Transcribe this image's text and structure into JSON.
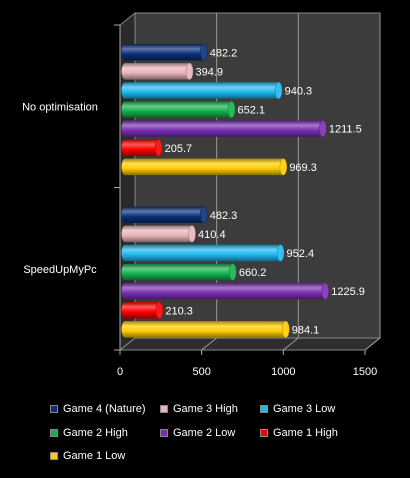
{
  "chart_data": {
    "type": "bar",
    "orientation": "horizontal",
    "categories": [
      "No optimisation",
      "SpeedUpMyPc"
    ],
    "series": [
      {
        "name": "Game 4 (Nature)",
        "color": "#0b2f7a",
        "values": [
          482.2,
          482.3
        ],
        "labels": [
          "482.2",
          "482.3"
        ]
      },
      {
        "name": "Game 3 High",
        "color": "#e8b4b8",
        "values": [
          394.9,
          410.4
        ],
        "labels": [
          "394.9",
          "410.4"
        ]
      },
      {
        "name": "Game 3 Low",
        "color": "#1fb8ee",
        "values": [
          940.3,
          952.4
        ],
        "labels": [
          "940.3",
          "952.4"
        ]
      },
      {
        "name": "Game 2 High",
        "color": "#14b04c",
        "values": [
          652.1,
          660.2
        ],
        "labels": [
          "652.1",
          "660.2"
        ]
      },
      {
        "name": "Game 2 Low",
        "color": "#7a2fb2",
        "values": [
          1211.5,
          1225.9
        ],
        "labels": [
          "1211.5",
          "1225.9"
        ]
      },
      {
        "name": "Game 1 High",
        "color": "#ff0000",
        "values": [
          205.7,
          210.3
        ],
        "labels": [
          "205.7",
          "210.3"
        ]
      },
      {
        "name": "Game 1 Low",
        "color": "#ffcc00",
        "values": [
          969.3,
          984.1
        ],
        "labels": [
          "969.3",
          "984.1"
        ]
      }
    ],
    "xlim": [
      0,
      1500
    ],
    "xticks": [
      "0",
      "500",
      "1000",
      "1500"
    ],
    "xtick_values": [
      0,
      500,
      1000,
      1500
    ],
    "grid": true,
    "legend_position": "bottom",
    "background": "#000000",
    "plot_background": "#3c3c3c"
  }
}
